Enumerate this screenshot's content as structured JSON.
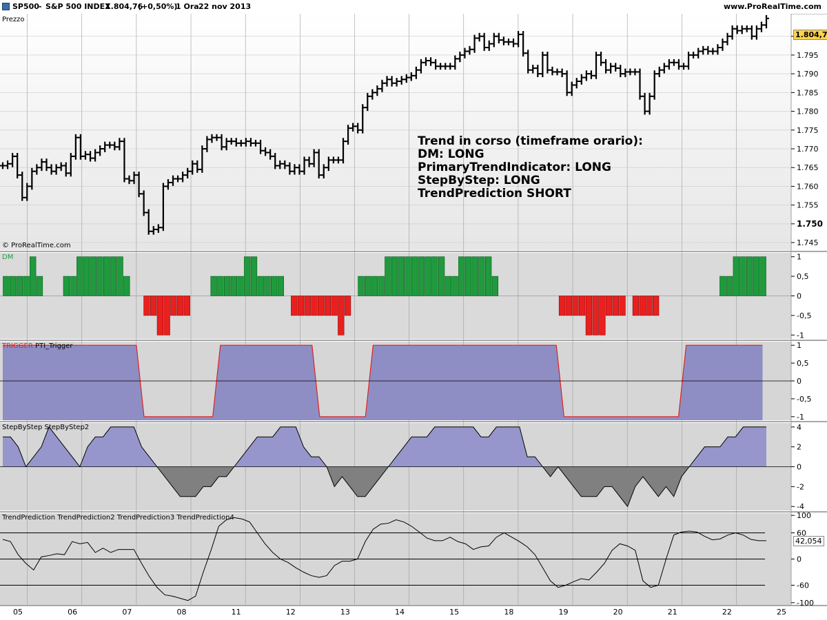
{
  "header": {
    "symbol": "SP500",
    "name": "S&P 500 INDEX",
    "price": "1.804,76",
    "change": "(+0,50%)",
    "timeframe": "1 Ora",
    "date": "22 nov 2013",
    "site": "www.ProRealTime.com"
  },
  "price_pane": {
    "label": "Prezzo",
    "copyright": "© ProRealTime.com",
    "last_value": "1.804,76",
    "annotation": [
      "Trend in corso (timeframe orario):",
      "DM: LONG",
      "PrimaryTrendIndicator: LONG",
      "StepByStep: LONG",
      "TrendPrediction SHORT"
    ]
  },
  "dm_pane": {
    "label": "DM"
  },
  "trigger_pane": {
    "label_red": "TRIGGER",
    "label_black": "PTI_Trigger"
  },
  "step_pane": {
    "label": "StepByStep StepByStep2"
  },
  "tp_pane": {
    "label": "TrendPrediction TrendPrediction2 TrendPrediction3 TrendPrediction4",
    "last_value": "42,054"
  },
  "colors": {
    "bar": "#000000",
    "dm_up": "#1f9a3c",
    "dm_down": "#e8201e",
    "trigger_fill": "#8e8ec4",
    "trigger_line": "#e02020",
    "step_pos": "#9696cc",
    "step_neg": "#808080",
    "pane_bg": "#d6d6d6",
    "price_bg": "#eeeeee",
    "last_price_bg": "#ffd24d"
  },
  "chart_data": [
    {
      "type": "ohlc",
      "name": "price",
      "x_labels": [
        "05",
        "06",
        "07",
        "08",
        "11",
        "12",
        "13",
        "14",
        "15",
        "18",
        "19",
        "20",
        "21",
        "22",
        "25"
      ],
      "ylim": [
        1743,
        1806
      ],
      "y_ticks": [
        "1.745",
        "1.750",
        "1.755",
        "1.760",
        "1.765",
        "1.770",
        "1.775",
        "1.780",
        "1.785",
        "1.790",
        "1.795",
        "1.800"
      ],
      "close": [
        1765.5,
        1766,
        1768,
        1763,
        1757,
        1760,
        1764,
        1765,
        1766.5,
        1765,
        1764,
        1765,
        1765.5,
        1763.5,
        1768,
        1773,
        1768,
        1768.5,
        1767.5,
        1769,
        1770,
        1771,
        1771,
        1770.5,
        1772,
        1762,
        1761.5,
        1763,
        1758,
        1753,
        1748,
        1748.5,
        1749,
        1760,
        1761,
        1762,
        1762,
        1763,
        1764,
        1766,
        1764.5,
        1770,
        1772.5,
        1773,
        1773,
        1770.5,
        1772,
        1772,
        1771.5,
        1771.5,
        1772,
        1771.5,
        1771.5,
        1769.5,
        1769,
        1768,
        1765.5,
        1766,
        1765.5,
        1764,
        1765,
        1764,
        1767,
        1766,
        1769,
        1763,
        1765,
        1767,
        1767,
        1767,
        1772,
        1775.5,
        1776,
        1775,
        1781,
        1784,
        1785,
        1786,
        1787.5,
        1788.5,
        1787.5,
        1788,
        1788.5,
        1789,
        1789.5,
        1791,
        1793,
        1793.5,
        1793,
        1792,
        1792,
        1792,
        1792,
        1794,
        1795,
        1796,
        1796.5,
        1799.5,
        1800,
        1797,
        1798,
        1800,
        1799,
        1798.5,
        1798.5,
        1798,
        1800.5,
        1795.5,
        1791,
        1791.5,
        1790,
        1795,
        1791,
        1790.5,
        1790.5,
        1790,
        1785,
        1787,
        1788,
        1789,
        1790,
        1789.5,
        1795,
        1793,
        1791,
        1792,
        1791.5,
        1790,
        1790.5,
        1790.5,
        1790.5,
        1784,
        1780,
        1784,
        1790,
        1791,
        1792,
        1793,
        1793,
        1792,
        1792,
        1795,
        1795,
        1796,
        1796.5,
        1796,
        1796,
        1797,
        1798.5,
        1800,
        1802,
        1801.5,
        1802,
        1802,
        1800,
        1802,
        1803,
        1804.76
      ]
    },
    {
      "type": "bar",
      "name": "DM",
      "ylim": [
        -1.1,
        1.1
      ],
      "y_ticks": [
        "1",
        "0,5",
        "0",
        "-0,5",
        "-1"
      ],
      "values": [
        0.5,
        0.5,
        0.5,
        0.5,
        1,
        0.5,
        0,
        0,
        0,
        0.5,
        0.5,
        1,
        1,
        1,
        1,
        1,
        1,
        1,
        0.5,
        0,
        0,
        -0.5,
        -0.5,
        -1,
        -1,
        -0.5,
        -0.5,
        -0.5,
        0,
        0,
        0,
        0.5,
        0.5,
        0.5,
        0.5,
        0.5,
        1,
        1,
        0.5,
        0.5,
        0.5,
        0.5,
        0,
        -0.5,
        -0.5,
        -0.5,
        -0.5,
        -0.5,
        -0.5,
        -0.5,
        -1,
        -0.5,
        0,
        0.5,
        0.5,
        0.5,
        0.5,
        1,
        1,
        1,
        1,
        1,
        1,
        1,
        1,
        1,
        0.5,
        0.5,
        1,
        1,
        1,
        1,
        1,
        0.5,
        0,
        0,
        0,
        0,
        0,
        0,
        0,
        0,
        0,
        -0.5,
        -0.5,
        -0.5,
        -0.5,
        -1,
        -1,
        -1,
        -0.5,
        -0.5,
        -0.5,
        0,
        -0.5,
        -0.5,
        -0.5,
        -0.5,
        0,
        0,
        0,
        0,
        0,
        0,
        0,
        0,
        0,
        0.5,
        0.5,
        1,
        1,
        1,
        1,
        1
      ]
    },
    {
      "type": "area",
      "name": "PTI_Trigger",
      "ylim": [
        -1.1,
        1.1
      ],
      "y_ticks": [
        "1",
        "0,5",
        "0",
        "-0,5",
        "-1"
      ],
      "x": [
        0,
        17.5,
        18.5,
        27.5,
        28.5,
        40.5,
        41.5,
        47.5,
        48.5,
        72.5,
        73.5,
        88.5,
        89.5,
        99.5
      ],
      "y": [
        1,
        1,
        -1,
        -1,
        1,
        1,
        -1,
        -1,
        1,
        1,
        -1,
        -1,
        1,
        1
      ]
    },
    {
      "type": "area",
      "name": "StepByStep",
      "ylim": [
        -4.4,
        4.4
      ],
      "y_ticks": [
        "4",
        "2",
        "0",
        "-2",
        "-4"
      ],
      "values": [
        3,
        3,
        2,
        0,
        1,
        2,
        4,
        3,
        2,
        1,
        0,
        2,
        3,
        3,
        4,
        4,
        4,
        4,
        2,
        1,
        0,
        -1,
        -2,
        -3,
        -3,
        -3,
        -2,
        -2,
        -1,
        -1,
        0,
        1,
        2,
        3,
        3,
        3,
        4,
        4,
        4,
        2,
        1,
        1,
        0,
        -2,
        -1,
        -2,
        -3,
        -3,
        -2,
        -1,
        0,
        1,
        2,
        3,
        3,
        3,
        4,
        4,
        4,
        4,
        4,
        4,
        3,
        3,
        4,
        4,
        4,
        4,
        1,
        1,
        0,
        -1,
        0,
        -1,
        -2,
        -3,
        -3,
        -3,
        -2,
        -2,
        -3,
        -4,
        -2,
        -1,
        -2,
        -3,
        -2,
        -3,
        -1,
        0,
        1,
        2,
        2,
        2,
        3,
        3,
        4,
        4,
        4,
        4
      ]
    },
    {
      "type": "line",
      "name": "TrendPrediction",
      "ylim": [
        -105,
        105
      ],
      "y_ticks": [
        "100",
        "60",
        "0",
        "-60",
        "-100"
      ],
      "hlines": [
        60,
        0,
        -60
      ],
      "values": [
        45,
        40,
        10,
        -10,
        -25,
        5,
        8,
        12,
        10,
        40,
        35,
        38,
        15,
        25,
        15,
        22,
        22,
        22,
        -10,
        -40,
        -65,
        -82,
        -85,
        -90,
        -95,
        -85,
        -30,
        20,
        75,
        90,
        95,
        92,
        85,
        60,
        35,
        15,
        0,
        -8,
        -20,
        -30,
        -38,
        -42,
        -38,
        -15,
        -5,
        -5,
        0,
        40,
        68,
        80,
        82,
        90,
        85,
        75,
        62,
        48,
        42,
        42,
        50,
        40,
        35,
        22,
        28,
        30,
        50,
        60,
        50,
        40,
        28,
        10,
        -20,
        -50,
        -65,
        -60,
        -52,
        -45,
        -48,
        -30,
        -10,
        20,
        35,
        30,
        20,
        -50,
        -65,
        -60,
        0,
        55,
        62,
        64,
        62,
        52,
        44,
        46,
        55,
        60,
        55,
        45,
        42,
        42.05
      ]
    }
  ]
}
